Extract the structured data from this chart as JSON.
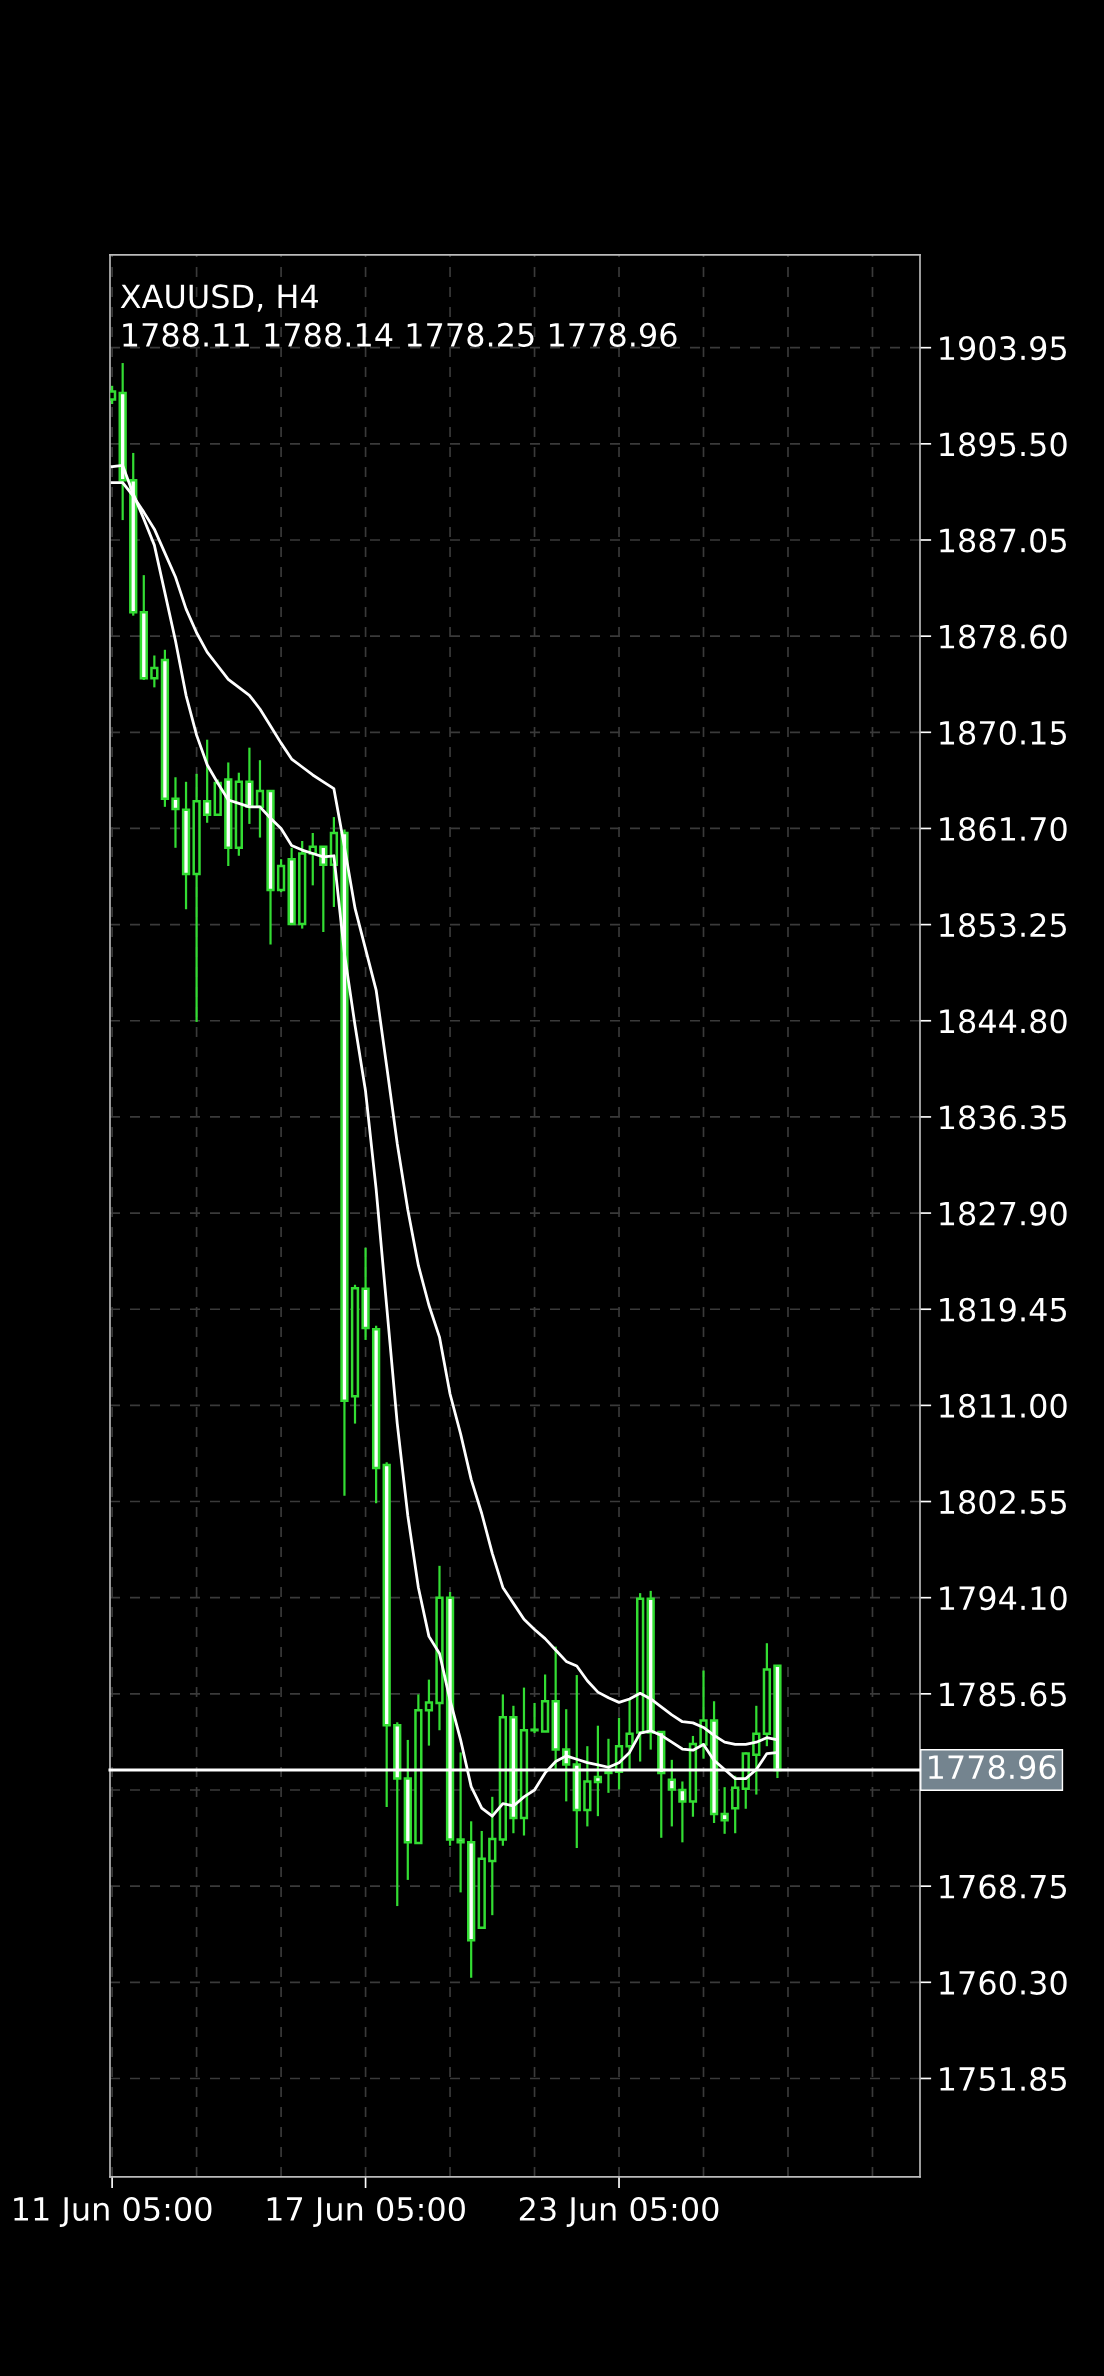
{
  "chart_data": {
    "type": "candlestick",
    "title": "XAUUSD, H4",
    "subtitle": "1788.11 1788.14 1778.25 1778.96",
    "categories": [
      "11 Jun 05:00",
      null,
      null,
      null,
      null,
      null,
      null,
      null,
      null,
      null,
      null,
      null,
      null,
      null,
      null,
      null,
      null,
      null,
      null,
      null,
      null,
      null,
      null,
      null,
      "17 Jun 05:00",
      null,
      null,
      null,
      null,
      null,
      null,
      null,
      null,
      null,
      null,
      null,
      null,
      null,
      null,
      null,
      null,
      null,
      null,
      null,
      null,
      null,
      null,
      null,
      "23 Jun 05:00",
      null,
      null,
      null,
      null,
      null,
      null,
      null,
      null,
      null,
      null,
      null,
      null,
      null,
      null,
      null,
      null,
      null,
      null,
      null,
      null,
      null,
      null,
      null,
      null,
      null,
      null,
      null,
      null
    ],
    "color": "#33dd33",
    "ohlc": [
      [
        1899.4,
        1900.6,
        1899.0,
        1900.1
      ],
      [
        1899.96,
        1902.6,
        1888.8,
        1892.3
      ],
      [
        1892.3,
        1894.7,
        1880.4,
        1880.7
      ],
      [
        1880.7,
        1883.96,
        1874.75,
        1874.9
      ],
      [
        1874.9,
        1876.9,
        1874.1,
        1875.8
      ],
      [
        1876.5,
        1877.4,
        1863.6,
        1864.3
      ],
      [
        1864.3,
        1866.2,
        1860.0,
        1863.4
      ],
      [
        1863.35,
        1865.8,
        1854.6,
        1857.7
      ],
      [
        1857.7,
        1866.5,
        1844.7,
        1864.1
      ],
      [
        1864.1,
        1869.5,
        1862.2,
        1862.9
      ],
      [
        1862.9,
        1866.0,
        1862.9,
        1865.7
      ],
      [
        1866.0,
        1867.5,
        1858.4,
        1860.0
      ],
      [
        1860.0,
        1866.6,
        1859.3,
        1865.8
      ],
      [
        1865.8,
        1868.8,
        1862.1,
        1863.6
      ],
      [
        1863.6,
        1867.7,
        1860.9,
        1865.0
      ],
      [
        1865.0,
        1865.0,
        1851.5,
        1856.3
      ],
      [
        1856.3,
        1859.0,
        1856.1,
        1858.4
      ],
      [
        1859.0,
        1860.0,
        1853.3,
        1853.3
      ],
      [
        1853.3,
        1860.6,
        1852.9,
        1859.5
      ],
      [
        1859.5,
        1861.3,
        1856.7,
        1860.1
      ],
      [
        1860.1,
        1860.1,
        1852.6,
        1858.5
      ],
      [
        1858.5,
        1862.7,
        1854.8,
        1861.3
      ],
      [
        1861.3,
        1861.6,
        1803.05,
        1811.4
      ],
      [
        1811.8,
        1821.6,
        1809.4,
        1821.3
      ],
      [
        1821.25,
        1824.85,
        1816.75,
        1817.8
      ],
      [
        1817.7,
        1818.0,
        1802.4,
        1805.5
      ],
      [
        1805.75,
        1806.0,
        1775.7,
        1782.9
      ],
      [
        1782.9,
        1783.15,
        1767.0,
        1778.2
      ],
      [
        1778.2,
        1781.6,
        1769.3,
        1772.6
      ],
      [
        1772.55,
        1785.6,
        1772.5,
        1784.2
      ],
      [
        1784.2,
        1786.9,
        1781.1,
        1784.9
      ],
      [
        1784.85,
        1796.9,
        1782.45,
        1794.1
      ],
      [
        1794.1,
        1794.6,
        1772.3,
        1772.85
      ],
      [
        1772.85,
        1780.5,
        1768.2,
        1772.6
      ],
      [
        1772.6,
        1774.45,
        1760.7,
        1764.0
      ],
      [
        1765.1,
        1773.6,
        1765.1,
        1771.15
      ],
      [
        1770.95,
        1776.6,
        1766.2,
        1772.9
      ],
      [
        1772.85,
        1785.6,
        1772.3,
        1783.6
      ],
      [
        1783.6,
        1784.6,
        1773.4,
        1774.75
      ],
      [
        1774.75,
        1786.2,
        1773.2,
        1782.45
      ],
      [
        1782.45,
        1784.85,
        1782.2,
        1782.5
      ],
      [
        1782.35,
        1787.35,
        1782.35,
        1785.0
      ],
      [
        1785.0,
        1789.8,
        1779.05,
        1780.75
      ],
      [
        1780.75,
        1784.3,
        1776.2,
        1779.45
      ],
      [
        1779.45,
        1787.3,
        1772.1,
        1775.45
      ],
      [
        1775.45,
        1781.05,
        1774.0,
        1777.95
      ],
      [
        1778.35,
        1782.85,
        1774.9,
        1777.9
      ],
      [
        1778.85,
        1781.7,
        1776.95,
        1778.7
      ],
      [
        1778.8,
        1783.55,
        1777.25,
        1781.05
      ],
      [
        1781.05,
        1785.2,
        1779.0,
        1782.15
      ],
      [
        1782.25,
        1794.5,
        1779.7,
        1794.0
      ],
      [
        1794.0,
        1794.7,
        1780.75,
        1782.25
      ],
      [
        1782.3,
        1782.35,
        1773.0,
        1778.7
      ],
      [
        1778.1,
        1779.85,
        1774.0,
        1777.25
      ],
      [
        1777.2,
        1777.95,
        1772.6,
        1776.2
      ],
      [
        1776.2,
        1781.95,
        1774.85,
        1781.25
      ],
      [
        1781.2,
        1787.7,
        1779.95,
        1783.3
      ],
      [
        1783.3,
        1785.0,
        1774.3,
        1775.1
      ],
      [
        1775.1,
        1777.45,
        1773.35,
        1774.55
      ],
      [
        1775.6,
        1778.45,
        1773.4,
        1777.4
      ],
      [
        1777.3,
        1780.5,
        1775.55,
        1780.4
      ],
      [
        1780.3,
        1784.6,
        1776.8,
        1782.15
      ],
      [
        1782.15,
        1790.1,
        1781.05,
        1787.8
      ],
      [
        1788.11,
        1788.14,
        1778.25,
        1778.96
      ],
      null,
      null,
      null,
      null,
      null,
      null,
      null,
      null,
      null,
      null,
      null,
      null,
      null
    ],
    "series": [
      {
        "type": "line",
        "color": "#ffffff",
        "values": [
          1893.5,
          1893.6,
          1891.1,
          1888.9,
          1886.6,
          1882.4,
          1878.2,
          1873.4,
          1869.9,
          1867.3,
          1865.7,
          1864.2,
          1863.9,
          1863.6,
          1863.6,
          1862.6,
          1861.7,
          1860.2,
          1859.8,
          1859.5,
          1859.2,
          1859.3,
          1850.7,
          1844.4,
          1838.6,
          1830.0,
          1819.7,
          1809.4,
          1801.3,
          1795.0,
          1790.7,
          1789.2,
          1785.1,
          1781.6,
          1777.5,
          1775.6,
          1774.9,
          1776.0,
          1775.8,
          1776.6,
          1777.2,
          1778.7,
          1779.7,
          1780.2,
          1779.9,
          1779.6,
          1779.4,
          1779.2,
          1779.6,
          1780.5,
          1782.2,
          1782.4,
          1782.0,
          1781.4,
          1780.8,
          1780.7,
          1781.2,
          1779.8,
          1779.0,
          1778.2,
          1778.2,
          1779.0,
          1780.4,
          1780.5,
          null,
          null,
          null,
          null,
          null,
          null,
          null,
          null,
          null,
          null,
          null,
          null,
          null
        ]
      },
      {
        "type": "line",
        "color": "#ffffff",
        "values": [
          1892.1,
          1892.1,
          1890.9,
          1889.5,
          1888.0,
          1885.9,
          1883.8,
          1881.0,
          1878.9,
          1877.2,
          1876.0,
          1874.8,
          1874.1,
          1873.4,
          1872.2,
          1870.7,
          1869.2,
          1867.8,
          1867.1,
          1866.4,
          1865.8,
          1865.2,
          1860.1,
          1854.7,
          1851.1,
          1847.5,
          1840.8,
          1834.0,
          1828.2,
          1823.3,
          1819.8,
          1817.0,
          1812.0,
          1808.5,
          1804.5,
          1801.5,
          1798.0,
          1795.0,
          1793.6,
          1792.2,
          1791.3,
          1790.5,
          1789.5,
          1788.5,
          1788.1,
          1786.8,
          1785.8,
          1785.3,
          1784.9,
          1785.2,
          1785.7,
          1785.2,
          1784.5,
          1783.8,
          1783.2,
          1783.1,
          1782.7,
          1782.0,
          1781.4,
          1781.2,
          1781.2,
          1781.4,
          1781.8,
          1781.6,
          null,
          null,
          null,
          null,
          null,
          null,
          null,
          null,
          null,
          null,
          null,
          null,
          null
        ]
      }
    ],
    "ylim": [
      1743.2,
      1912.1
    ],
    "yticks": [
      1903.95,
      {
        "value": 1895.5,
        "label": "1895.50"
      },
      1887.05,
      {
        "value": 1878.6,
        "label": "1878.60"
      },
      1870.15,
      {
        "value": 1861.7,
        "label": "1861.70"
      },
      1853.25,
      {
        "value": 1844.8,
        "label": "1844.80"
      },
      1836.35,
      {
        "value": 1827.9,
        "label": "1827.90"
      },
      1819.45,
      {
        "value": 1811.0,
        "label": "1811.00"
      },
      1802.55,
      {
        "value": 1794.1,
        "label": "1794.10"
      },
      1785.65,
      {
        "value": 1777.2,
        "label": null
      },
      1768.75,
      {
        "value": 1760.3,
        "label": "1760.30"
      },
      1751.85
    ],
    "ref_lines": [
      {
        "axis": "y",
        "value": 1778.96,
        "label": "1778.96",
        "color": "#ffffff"
      }
    ],
    "grid": true,
    "legend": false,
    "line_style": "solid",
    "marker": "none"
  }
}
